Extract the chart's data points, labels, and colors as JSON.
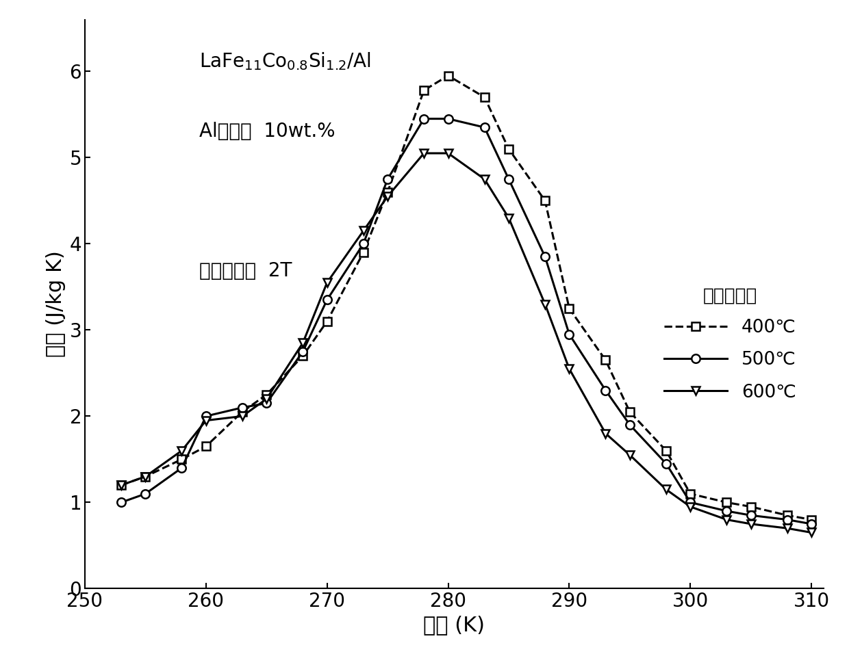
{
  "legend_title": "热压温度：",
  "legend_entries": [
    "400℃",
    "500℃",
    "600℃"
  ],
  "xlabel": "温度 (K)",
  "ylabel": "熵变 (J/kg K)",
  "xlim": [
    251,
    311
  ],
  "ylim": [
    0,
    6.6
  ],
  "xticks": [
    250,
    260,
    270,
    280,
    290,
    300,
    310
  ],
  "yticks": [
    0,
    1,
    2,
    3,
    4,
    5,
    6
  ],
  "series_400": {
    "x": [
      253,
      255,
      258,
      260,
      263,
      265,
      268,
      270,
      273,
      275,
      278,
      280,
      283,
      285,
      288,
      290,
      293,
      295,
      298,
      300,
      303,
      305,
      308,
      310
    ],
    "y": [
      1.2,
      1.3,
      1.5,
      1.65,
      2.05,
      2.25,
      2.7,
      3.1,
      3.9,
      4.6,
      5.78,
      5.95,
      5.7,
      5.1,
      4.5,
      3.25,
      2.65,
      2.05,
      1.6,
      1.1,
      1.0,
      0.95,
      0.85,
      0.8
    ],
    "linestyle": "--",
    "marker": "s",
    "markersize": 9
  },
  "series_500": {
    "x": [
      253,
      255,
      258,
      260,
      263,
      265,
      268,
      270,
      273,
      275,
      278,
      280,
      283,
      285,
      288,
      290,
      293,
      295,
      298,
      300,
      303,
      305,
      308,
      310
    ],
    "y": [
      1.0,
      1.1,
      1.4,
      2.0,
      2.1,
      2.15,
      2.75,
      3.35,
      4.0,
      4.75,
      5.45,
      5.45,
      5.35,
      4.75,
      3.85,
      2.95,
      2.3,
      1.9,
      1.45,
      1.0,
      0.9,
      0.85,
      0.8,
      0.75
    ],
    "linestyle": "-",
    "marker": "o",
    "markersize": 9
  },
  "series_600": {
    "x": [
      253,
      255,
      258,
      260,
      263,
      265,
      268,
      270,
      273,
      275,
      278,
      280,
      283,
      285,
      288,
      290,
      293,
      295,
      298,
      300,
      303,
      305,
      308,
      310
    ],
    "y": [
      1.2,
      1.3,
      1.6,
      1.95,
      2.0,
      2.2,
      2.85,
      3.55,
      4.15,
      4.55,
      5.05,
      5.05,
      4.75,
      4.3,
      3.3,
      2.55,
      1.8,
      1.55,
      1.15,
      0.95,
      0.8,
      0.75,
      0.7,
      0.65
    ],
    "linestyle": "-",
    "marker": "v",
    "markersize": 9
  },
  "linewidth": 2.2,
  "background_color": "#ffffff",
  "axis_fontsize": 22,
  "tick_fontsize": 20,
  "legend_fontsize": 19,
  "annotation_fontsize": 20
}
